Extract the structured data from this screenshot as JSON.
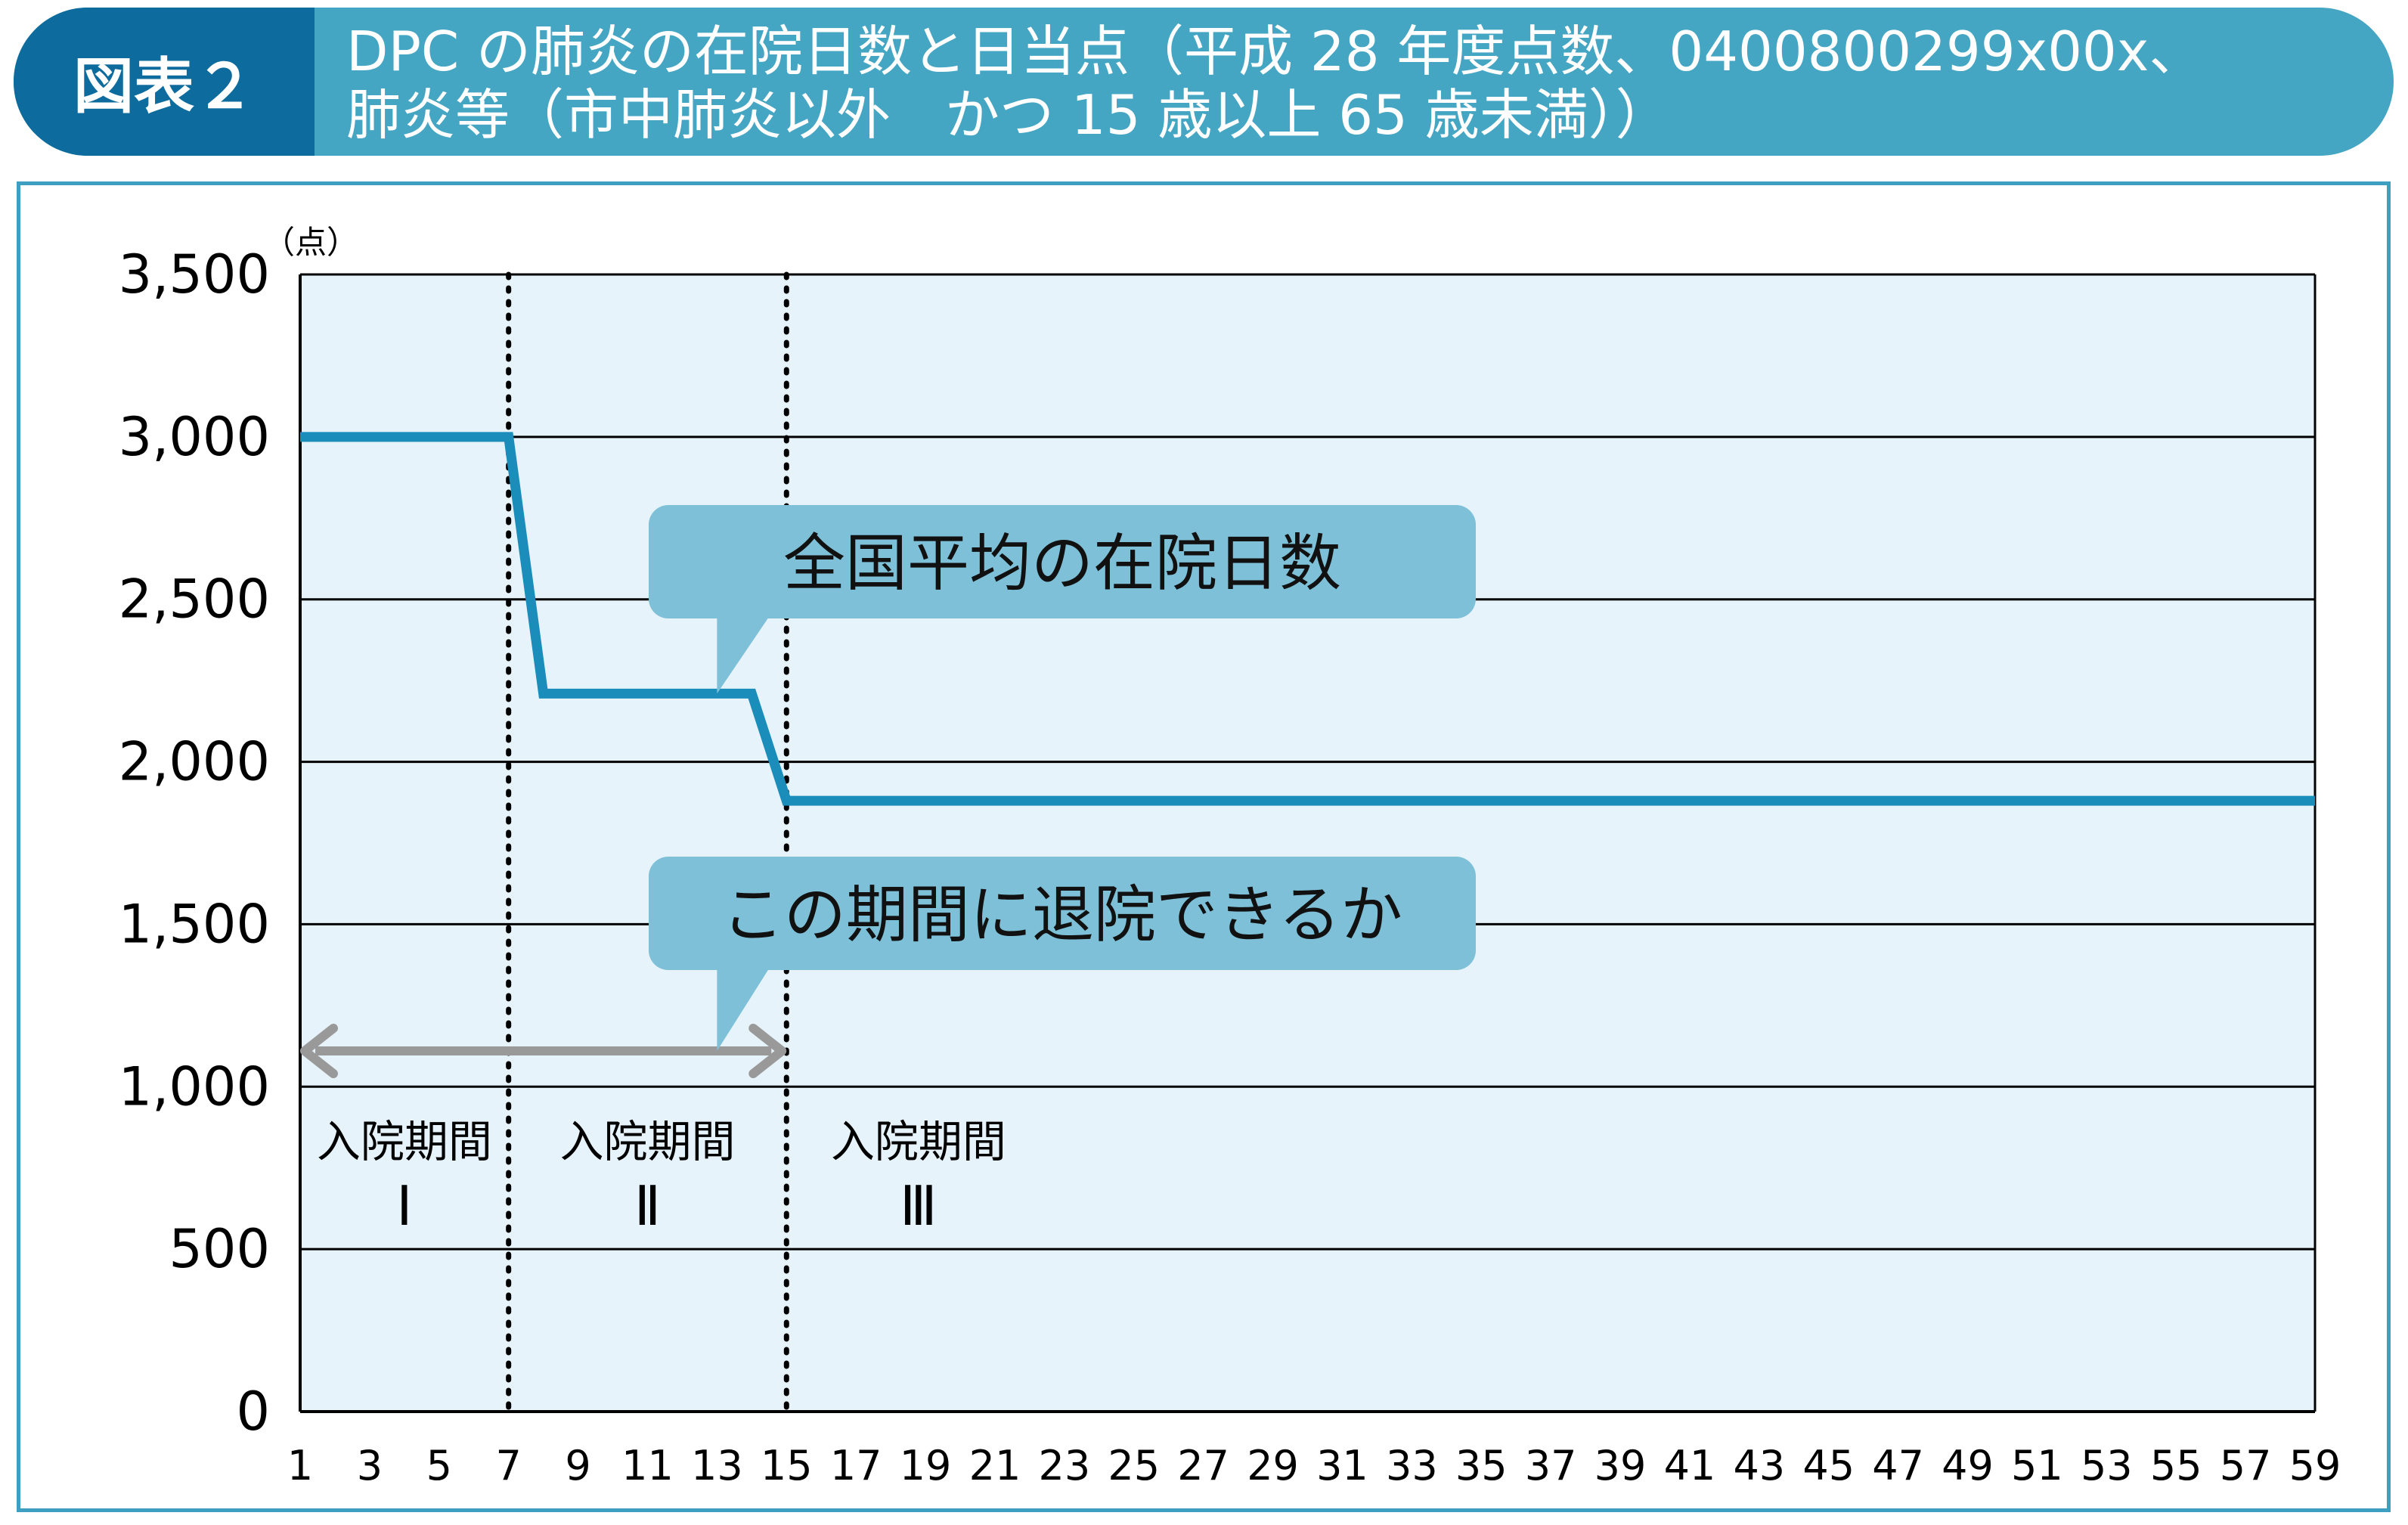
{
  "header": {
    "figure_label": "図表２",
    "title": "DPC の肺炎の在院日数と日当点（平成 28 年度点数、0400800299x00x、\n肺炎等（市中肺炎以外　かつ 15 歳以上 65 歳未満））"
  },
  "colors": {
    "header_bg": "#45a6c4",
    "label_bg": "#0e6b9d",
    "plot_bg": "#e6f3fb",
    "line": "#1a8dbb",
    "callout": "#7dc0d8",
    "arrow": "#999999",
    "frame": "#3f9fc1"
  },
  "chart_data": {
    "type": "line",
    "title": "",
    "xlabel": "",
    "ylabel": "",
    "y_unit": "（点）",
    "xlim": [
      1,
      59
    ],
    "ylim": [
      0,
      3500
    ],
    "x_ticks": [
      1,
      3,
      5,
      7,
      9,
      11,
      13,
      15,
      17,
      19,
      21,
      23,
      25,
      27,
      29,
      31,
      33,
      35,
      37,
      39,
      41,
      43,
      45,
      47,
      49,
      51,
      53,
      55,
      57,
      59
    ],
    "y_ticks": [
      0,
      500,
      1000,
      1500,
      2000,
      2500,
      3000,
      3500
    ],
    "y_tick_labels": [
      "0",
      "500",
      "1,000",
      "1,500",
      "2,000",
      "2,500",
      "3,000",
      "3,500"
    ],
    "grid": true,
    "series": [
      {
        "x": [
          1,
          7,
          8,
          14,
          15,
          59
        ],
        "y": [
          3000,
          3000,
          2210,
          2210,
          1880,
          1880
        ]
      }
    ],
    "period_boundaries": [
      7,
      15
    ],
    "periods": [
      {
        "label": "入院期間",
        "numeral": "Ⅰ",
        "x": 4
      },
      {
        "label": "入院期間",
        "numeral": "Ⅱ",
        "x": 11
      },
      {
        "label": "入院期間",
        "numeral": "Ⅲ",
        "x": 18.8
      }
    ],
    "annotations": [
      {
        "text": "全国平均の在院日数",
        "pointer": {
          "x": 13,
          "y": 2210
        }
      },
      {
        "text": "この期間に退院できるか",
        "pointer": {
          "x": 13,
          "y": 1110
        }
      }
    ],
    "range_arrow": {
      "x_start": 1,
      "x_end": 15,
      "y": 1110
    }
  }
}
